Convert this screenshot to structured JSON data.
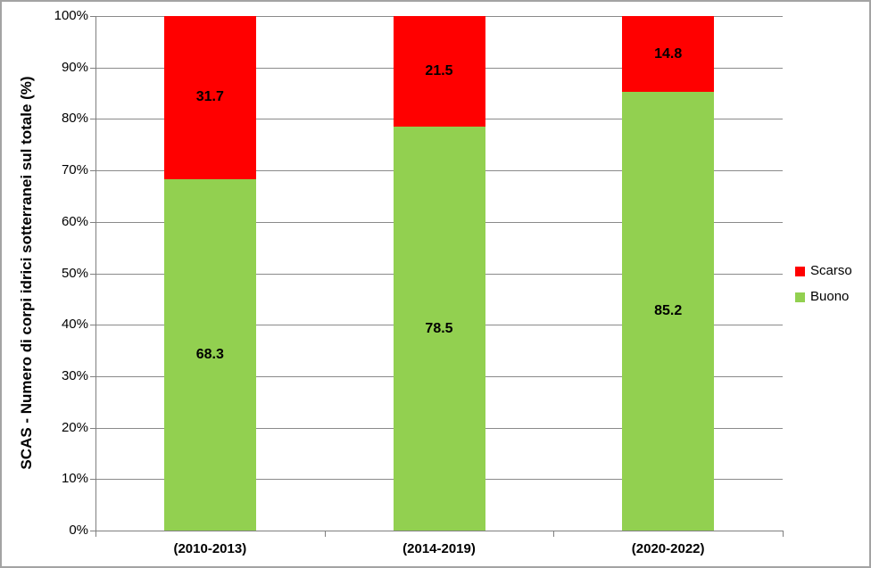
{
  "chart_data": {
    "type": "bar",
    "stacked": true,
    "title": "",
    "xlabel": "",
    "ylabel": "SCAS - Numero di corpi idrici sotterranei sul totale (%)",
    "categories": [
      "(2010-2013)",
      "(2014-2019)",
      "(2020-2022)"
    ],
    "series": [
      {
        "name": "Buono",
        "color": "#92D050",
        "values": [
          68.3,
          78.5,
          85.2
        ]
      },
      {
        "name": "Scarso",
        "color": "#FF0000",
        "values": [
          31.7,
          21.5,
          14.8
        ]
      }
    ],
    "ylim": [
      0,
      100
    ],
    "yticks": [
      "0%",
      "10%",
      "20%",
      "30%",
      "40%",
      "50%",
      "60%",
      "70%",
      "80%",
      "90%",
      "100%"
    ],
    "grid": true,
    "legend_position": "right",
    "legend_order": [
      "Scarso",
      "Buono"
    ]
  }
}
